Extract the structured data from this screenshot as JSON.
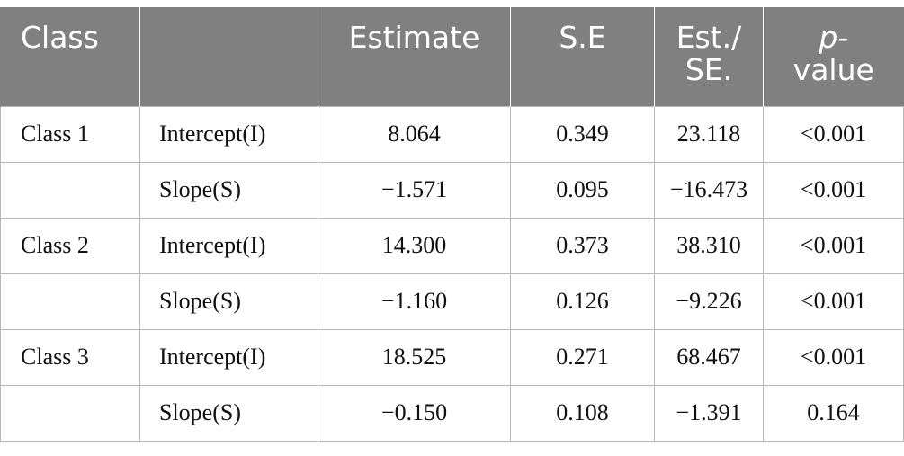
{
  "table": {
    "headers": {
      "class": "Class",
      "param": "",
      "estimate": "Estimate",
      "se": "S.E",
      "est_se_line1": "Est./",
      "est_se_line2": "SE.",
      "p_line1": "p-",
      "p_line2": "value"
    },
    "rows": [
      {
        "class": "Class 1",
        "param": "Intercept(I)",
        "estimate": "8.064",
        "se": "0.349",
        "est_se": "23.118",
        "p": "<0.001"
      },
      {
        "class": "",
        "param": "Slope(S)",
        "estimate": "−1.571",
        "se": "0.095",
        "est_se": "−16.473",
        "p": "<0.001"
      },
      {
        "class": "Class 2",
        "param": "Intercept(I)",
        "estimate": "14.300",
        "se": "0.373",
        "est_se": "38.310",
        "p": "<0.001"
      },
      {
        "class": "",
        "param": "Slope(S)",
        "estimate": "−1.160",
        "se": "0.126",
        "est_se": "−9.226",
        "p": "<0.001"
      },
      {
        "class": "Class 3",
        "param": "Intercept(I)",
        "estimate": "18.525",
        "se": "0.271",
        "est_se": "68.467",
        "p": "<0.001"
      },
      {
        "class": "",
        "param": "Slope(S)",
        "estimate": "−0.150",
        "se": "0.108",
        "est_se": "−1.391",
        "p": "0.164"
      }
    ]
  },
  "colors": {
    "header_bg": "#808080",
    "header_text": "#ffffff",
    "grid": "#b8b8b8"
  }
}
